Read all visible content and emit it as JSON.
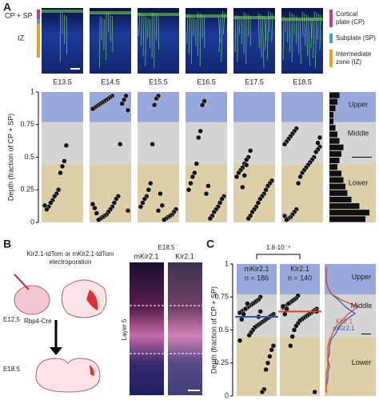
{
  "panel_a": {
    "label": "A",
    "image_labels": [
      "CP + SP",
      "IZ"
    ],
    "zone_legend": [
      {
        "lines": [
          "Cortical",
          "plate (CP)"
        ],
        "color": "#d6338a"
      },
      {
        "lines": [
          "Subplate (SP)"
        ],
        "color": "#3aa0dc"
      },
      {
        "lines": [
          "Intermediate",
          "zone (IZ)"
        ],
        "color": "#f0a020"
      }
    ],
    "stages": [
      "E13.5",
      "E14.5",
      "E15.5",
      "E16.5",
      "E17.5",
      "E18.5"
    ],
    "y_label": "Depth (fraction of CP + SP)",
    "ylim": [
      0,
      1
    ],
    "yticks": [
      0,
      0.25,
      0.5,
      0.75,
      1
    ],
    "bands": [
      {
        "name": "Upper",
        "from": 0.77,
        "to": 1,
        "color": "#97a9dc"
      },
      {
        "name": "Middle",
        "from": 0.45,
        "to": 0.77,
        "color": "#d4d4d4"
      },
      {
        "name": "Lower",
        "from": 0,
        "to": 0.45,
        "color": "#dccfa7"
      }
    ],
    "dots": [
      [
        0.59,
        0.47,
        0.43,
        0.38,
        0.25,
        0.22,
        0.2,
        0.17,
        0.15,
        0.12,
        0.1,
        0.13
      ],
      [
        0.97,
        0.96,
        0.95,
        0.94,
        0.93,
        0.92,
        0.91,
        0.9,
        0.89,
        0.88,
        0.87,
        0.86,
        0.97,
        0.94,
        0.91,
        0.6,
        0.2,
        0.18,
        0.15,
        0.12,
        0.1,
        0.08,
        0.06,
        0.05,
        0.04,
        0.03,
        0.02,
        0.07,
        0.11,
        0.14,
        0.09
      ],
      [
        0.97,
        0.95,
        0.9,
        0.6,
        0.3,
        0.25,
        0.2,
        0.18,
        0.15,
        0.12,
        0.1,
        0.08,
        0.06,
        0.05,
        0.04,
        0.03,
        0.02,
        0.13,
        0.22,
        0.09
      ],
      [
        0.93,
        0.9,
        0.7,
        0.65,
        0.45,
        0.38,
        0.35,
        0.3,
        0.25,
        0.2,
        0.18,
        0.15,
        0.12,
        0.1,
        0.08,
        0.05,
        0.03,
        0.28,
        0.22
      ],
      [
        0.55,
        0.5,
        0.48,
        0.45,
        0.42,
        0.4,
        0.38,
        0.35,
        0.32,
        0.3,
        0.28,
        0.25,
        0.22,
        0.2,
        0.18,
        0.15,
        0.12,
        0.1,
        0.08,
        0.05,
        0.03,
        0.44,
        0.36,
        0.27
      ],
      [
        0.72,
        0.7,
        0.68,
        0.66,
        0.64,
        0.62,
        0.6,
        0.58,
        0.56,
        0.54,
        0.5,
        0.48,
        0.46,
        0.44,
        0.42,
        0.4,
        0.38,
        0.35,
        0.3,
        0.1,
        0.08,
        0.06,
        0.04,
        0.03,
        0.02,
        0.05,
        0.65,
        0.61
      ]
    ],
    "histogram": {
      "bins": [
        0,
        0.05,
        0.1,
        0.15,
        0.2,
        0.25,
        0.3,
        0.35,
        0.4,
        0.45,
        0.5,
        0.55,
        0.6,
        0.65,
        0.7,
        0.75,
        0.8,
        0.85,
        0.9,
        0.95,
        1
      ],
      "counts": [
        0.9,
        1.0,
        0.75,
        0.55,
        0.45,
        0.4,
        0.35,
        0.3,
        0.2,
        0.25,
        0.3,
        0.35,
        0.25,
        0.2,
        0.15,
        0.1,
        0.1,
        0.15,
        0.2,
        0.25
      ]
    }
  },
  "panel_b": {
    "label": "B",
    "electroporation": [
      "Kir2.1-tdTom or mKir2.1-tdTom",
      "electroporation"
    ],
    "stage_start": "E12.5",
    "driver": "Rbp4-Cre",
    "stage_end": "E18.5",
    "image_stage": "E18.5",
    "image_labels": [
      "mKir2.1",
      "Kir2.1"
    ],
    "layer_label": "Layer 5"
  },
  "panel_c": {
    "label": "C",
    "p_value": "1.8·10⁻⁴",
    "y_label": "Depth (fraction of CP + SP)",
    "ylim": [
      0,
      1
    ],
    "yticks": [
      0,
      0.25,
      0.5,
      0.75,
      1
    ],
    "bands": [
      {
        "name": "Upper",
        "from": 0.77,
        "to": 1,
        "color": "#97a9dc"
      },
      {
        "name": "Middle",
        "from": 0.45,
        "to": 0.77,
        "color": "#d4d4d4"
      },
      {
        "name": "Lower",
        "from": 0,
        "to": 0.45,
        "color": "#dccfa7"
      }
    ],
    "hist_depth": [
      0.025,
      0.075,
      0.125,
      0.175,
      0.225,
      0.275,
      0.325,
      0.375,
      0.425,
      0.475,
      0.525,
      0.575,
      0.625,
      0.675,
      0.725,
      0.775,
      0.825,
      0.875,
      0.925,
      0.975
    ],
    "groups": [
      {
        "name": "mKir2.1",
        "n_label": "n = 186",
        "color": "#2f55b5",
        "mean": 0.6,
        "dots": [
          0.75,
          0.73,
          0.72,
          0.71,
          0.7,
          0.69,
          0.68,
          0.67,
          0.66,
          0.65,
          0.64,
          0.63,
          0.62,
          0.61,
          0.6,
          0.59,
          0.58,
          0.57,
          0.56,
          0.55,
          0.54,
          0.53,
          0.52,
          0.5,
          0.48,
          0.46,
          0.7,
          0.66,
          0.62,
          0.58,
          0.42,
          0.38,
          0.35,
          0.3,
          0.25,
          0.2,
          0.05,
          0.03,
          0.64,
          0.6
        ],
        "hist": [
          0,
          0,
          0.05,
          0.05,
          0.1,
          0.05,
          0.1,
          0.1,
          0.15,
          0.3,
          0.4,
          0.6,
          0.9,
          0.6,
          0.4,
          0.15,
          0.05,
          0,
          0,
          0
        ]
      },
      {
        "name": "Kir2.1",
        "n_label": "n = 140",
        "color": "#e0402a",
        "mean": 0.64,
        "dots": [
          0.76,
          0.74,
          0.73,
          0.72,
          0.71,
          0.7,
          0.69,
          0.68,
          0.67,
          0.66,
          0.65,
          0.64,
          0.63,
          0.62,
          0.61,
          0.6,
          0.59,
          0.58,
          0.57,
          0.55,
          0.53,
          0.5,
          0.45,
          0.38,
          0.7,
          0.66,
          0.62,
          0.68,
          0.64,
          0.03
        ],
        "hist": [
          0,
          0,
          0,
          0,
          0.05,
          0.05,
          0.05,
          0.05,
          0.1,
          0.2,
          0.3,
          0.5,
          0.7,
          1.0,
          0.5,
          0.15,
          0.05,
          0,
          0,
          0
        ]
      }
    ]
  }
}
